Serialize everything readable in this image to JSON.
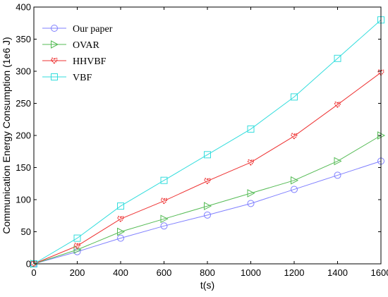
{
  "chart_data": {
    "type": "line",
    "title": "",
    "xlabel": "t(s)",
    "ylabel": "Communication Energy Consumption (1e6 J)",
    "xlim": [
      0,
      1600
    ],
    "ylim": [
      0,
      400
    ],
    "xticks": [
      "0",
      "200",
      "400",
      "600",
      "800",
      "1000",
      "1200",
      "1400",
      "1600"
    ],
    "yticks": [
      "0",
      "50",
      "100",
      "150",
      "200",
      "250",
      "300",
      "350",
      "400"
    ],
    "grid": false,
    "legend_position": "top-left",
    "x": [
      0,
      200,
      400,
      600,
      800,
      1000,
      1200,
      1400,
      1600
    ],
    "series": [
      {
        "name": "Our paper",
        "marker": "circle",
        "color": "#8080ff",
        "values": [
          0,
          19,
          40,
          59,
          76,
          94,
          116,
          138,
          160
        ]
      },
      {
        "name": "OVAR",
        "marker": "triangle-right",
        "color": "#55bb55",
        "values": [
          0,
          22,
          50,
          70,
          90,
          110,
          130,
          160,
          200
        ]
      },
      {
        "name": "HHVBF",
        "marker": "heart",
        "color": "#ee3333",
        "values": [
          0,
          28,
          70,
          98,
          129,
          158,
          199,
          248,
          298
        ]
      },
      {
        "name": "VBF",
        "marker": "square",
        "color": "#33dddd",
        "values": [
          0,
          40,
          90,
          130,
          170,
          210,
          260,
          320,
          380
        ]
      }
    ]
  }
}
